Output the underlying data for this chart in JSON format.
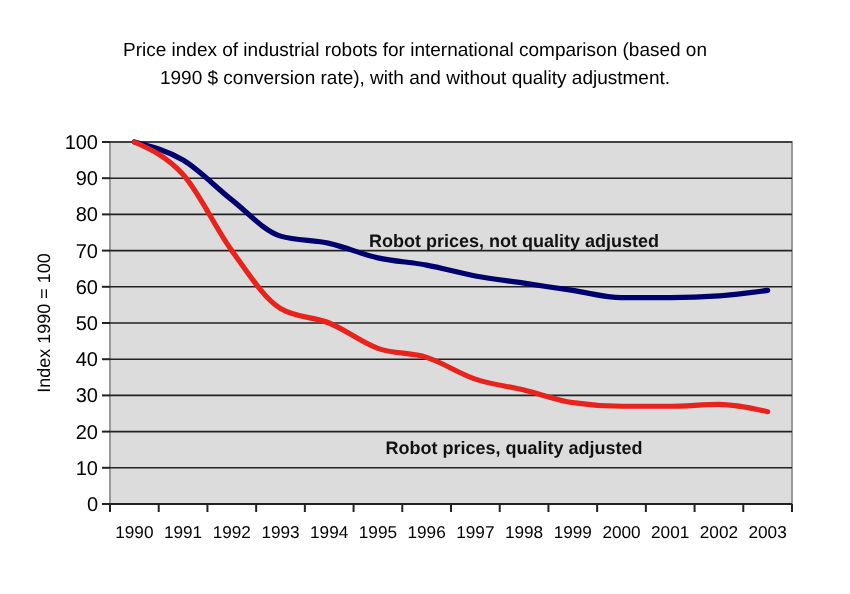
{
  "chart_data": {
    "type": "line",
    "title": "Price index of  industrial robots for international comparison (based on 1990 $ conversion rate), with and without quality adjustment.",
    "ylabel": "Index 1990 = 100",
    "categories": [
      "1990",
      "1991",
      "1992",
      "1993",
      "1994",
      "1995",
      "1996",
      "1997",
      "1998",
      "1999",
      "2000",
      "2001",
      "2002",
      "2003"
    ],
    "series": [
      {
        "name": "Robot prices, not quality adjusted",
        "color": "#00006e",
        "values": [
          100,
          95,
          84,
          74,
          72,
          68,
          66,
          63,
          61,
          59,
          57,
          57,
          57.5,
          59
        ]
      },
      {
        "name": "Robot prices, quality adjusted",
        "color": "#e8231c",
        "values": [
          100,
          91,
          70,
          54,
          50,
          43,
          40.5,
          34.5,
          31.5,
          28,
          27,
          27,
          27.5,
          25.5
        ]
      }
    ],
    "ylim": [
      0,
      100
    ],
    "yticks": [
      0,
      10,
      20,
      30,
      40,
      50,
      60,
      70,
      80,
      90,
      100
    ],
    "grid": "y",
    "marker": "none",
    "line_style": "solid"
  }
}
